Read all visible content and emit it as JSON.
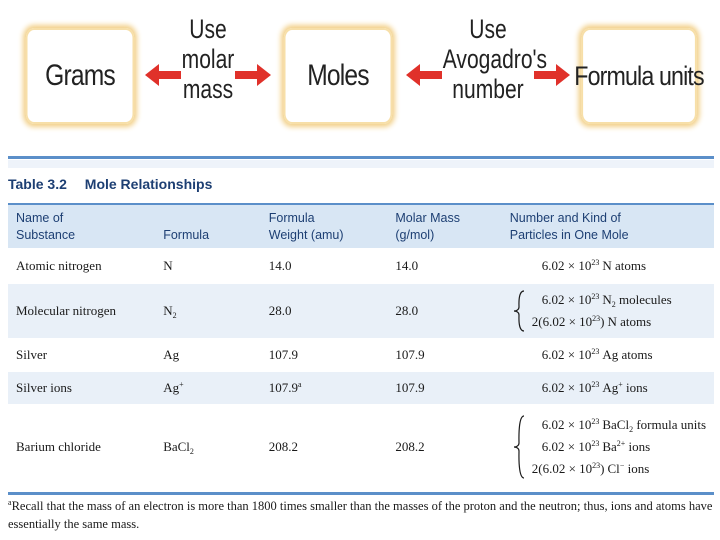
{
  "flow": {
    "boxes": {
      "grams": "Grams",
      "moles": "Moles",
      "formula_units": "Formula units"
    },
    "left_label": [
      "Use",
      "molar",
      "mass"
    ],
    "right_label": [
      "Use",
      "Avogadro's",
      "number"
    ],
    "colors": {
      "arrow": "#e0312a",
      "box_glow": "#f2cf86"
    }
  },
  "table": {
    "number": "Table 3.2",
    "title": "Mole Relationships",
    "headers": {
      "name": [
        "Name of",
        "Substance"
      ],
      "formula": "Formula",
      "weight": [
        "Formula",
        "Weight (amu)"
      ],
      "molar_mass": [
        "Molar Mass",
        "(g/mol)"
      ],
      "particles": [
        "Number and Kind of",
        "Particles in One Mole"
      ]
    },
    "rows": [
      {
        "name": "Atomic nitrogen",
        "formula": {
          "base": "N",
          "sub": "",
          "sup": ""
        },
        "weight": "14.0",
        "weight_note": "",
        "molar_mass": "14.0",
        "particles": [
          {
            "pre": "",
            "coef": "6.02 × 10",
            "exp": "23",
            "close": "",
            "species": "N",
            "species_sub": "",
            "species_sup": "",
            "kind": " atoms"
          }
        ]
      },
      {
        "name": "Molecular nitrogen",
        "formula": {
          "base": "N",
          "sub": "2",
          "sup": ""
        },
        "weight": "28.0",
        "weight_note": "",
        "molar_mass": "28.0",
        "particles": [
          {
            "pre": "",
            "coef": "6.02 × 10",
            "exp": "23",
            "close": "",
            "species": "N",
            "species_sub": "2",
            "species_sup": "",
            "kind": " molecules"
          },
          {
            "pre": "2(",
            "coef": "6.02 × 10",
            "exp": "23",
            "close": ")",
            "species": "N",
            "species_sub": "",
            "species_sup": "",
            "kind": " atoms"
          }
        ]
      },
      {
        "name": "Silver",
        "formula": {
          "base": "Ag",
          "sub": "",
          "sup": ""
        },
        "weight": "107.9",
        "weight_note": "",
        "molar_mass": "107.9",
        "particles": [
          {
            "pre": "",
            "coef": "6.02 × 10",
            "exp": "23",
            "close": "",
            "species": "Ag",
            "species_sub": "",
            "species_sup": "",
            "kind": " atoms"
          }
        ]
      },
      {
        "name": "Silver ions",
        "formula": {
          "base": "Ag",
          "sub": "",
          "sup": "+"
        },
        "weight": "107.9",
        "weight_note": "a",
        "molar_mass": "107.9",
        "particles": [
          {
            "pre": "",
            "coef": "6.02 × 10",
            "exp": "23",
            "close": "",
            "species": "Ag",
            "species_sub": "",
            "species_sup": "+",
            "kind": " ions"
          }
        ]
      },
      {
        "name": "Barium chloride",
        "formula": {
          "base": "BaCl",
          "sub": "2",
          "sup": ""
        },
        "weight": "208.2",
        "weight_note": "",
        "molar_mass": "208.2",
        "particles": [
          {
            "pre": "",
            "coef": "6.02 × 10",
            "exp": "23",
            "close": "",
            "species": "BaCl",
            "species_sub": "2",
            "species_sup": "",
            "kind": " formula units"
          },
          {
            "pre": "",
            "coef": "6.02 × 10",
            "exp": "23",
            "close": "",
            "species": "Ba",
            "species_sub": "",
            "species_sup": "2+",
            "kind": " ions"
          },
          {
            "pre": "2(",
            "coef": "6.02 × 10",
            "exp": "23",
            "close": ")",
            "species": "Cl",
            "species_sub": "",
            "species_sup": "−",
            "kind": " ions"
          }
        ]
      }
    ],
    "footnote": {
      "marker": "a",
      "text": "Recall that the mass of an electron is more than 1800 times smaller than the masses of the proton and the neutron; thus, ions and atoms have essentially the same mass."
    },
    "colors": {
      "rule": "#5b8fc9",
      "header_bg": "#d8e6f4",
      "row_shade": "#e9f0f8",
      "caption": "#1d3f73"
    }
  }
}
